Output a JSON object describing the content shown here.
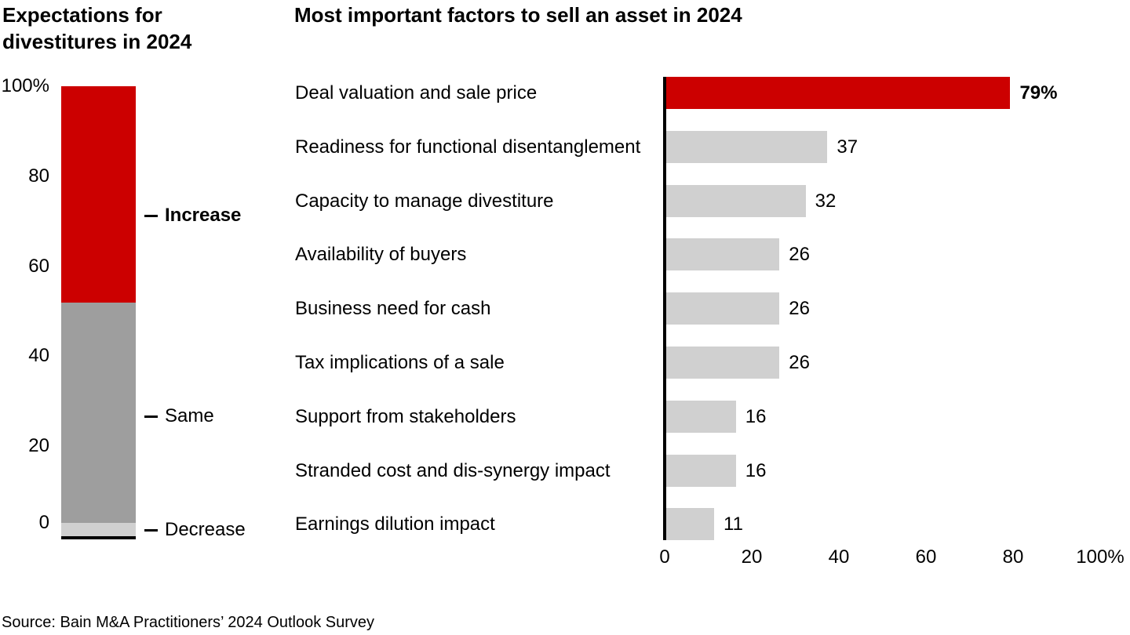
{
  "source": "Source: Bain M&A Practitioners’ 2024 Outlook Survey",
  "colors": {
    "accent_red": "#CC0000",
    "mid_gray": "#9E9E9E",
    "light_gray": "#D0D0D0",
    "axis_black": "#000000"
  },
  "chart_data": [
    {
      "type": "bar",
      "subtype": "100%-stacked-column",
      "title": "Expectations for divestitures in 2024",
      "unit": "%",
      "ylim": [
        0,
        100
      ],
      "grid": false,
      "legend_position": "right-of-bar",
      "series": [
        {
          "name": "Increase",
          "value": 48,
          "color": "#CC0000",
          "emphasis": true
        },
        {
          "name": "Same",
          "value": 49,
          "color": "#9E9E9E",
          "emphasis": false
        },
        {
          "name": "Decrease",
          "value": 3,
          "color": "#D0D0D0",
          "emphasis": false
        }
      ],
      "y_ticks": [
        {
          "label": "100%",
          "value": 100
        },
        {
          "label": "80",
          "value": 80
        },
        {
          "label": "60",
          "value": 60
        },
        {
          "label": "40",
          "value": 40
        },
        {
          "label": "20",
          "value": 20
        },
        {
          "label": "0",
          "value": 0
        }
      ]
    },
    {
      "type": "bar",
      "orientation": "horizontal",
      "title": "Most important factors to sell an asset in 2024",
      "unit": "%",
      "xlim": [
        0,
        100
      ],
      "grid": false,
      "bar_color": "#D0D0D0",
      "highlight_color": "#CC0000",
      "items": [
        {
          "label": "Deal valuation and sale price",
          "value": 79,
          "value_label": "79%",
          "highlight": true
        },
        {
          "label": "Readiness for functional disentanglement",
          "value": 37,
          "value_label": "37",
          "highlight": false
        },
        {
          "label": "Capacity to manage divestiture",
          "value": 32,
          "value_label": "32",
          "highlight": false
        },
        {
          "label": "Availability of buyers",
          "value": 26,
          "value_label": "26",
          "highlight": false
        },
        {
          "label": "Business need for cash",
          "value": 26,
          "value_label": "26",
          "highlight": false
        },
        {
          "label": "Tax implications of a sale",
          "value": 26,
          "value_label": "26",
          "highlight": false
        },
        {
          "label": "Support from stakeholders",
          "value": 16,
          "value_label": "16",
          "highlight": false
        },
        {
          "label": "Stranded cost and dis-synergy impact",
          "value": 16,
          "value_label": "16",
          "highlight": false
        },
        {
          "label": "Earnings dilution impact",
          "value": 11,
          "value_label": "11",
          "highlight": false
        }
      ],
      "x_ticks": [
        {
          "label": "0",
          "value": 0
        },
        {
          "label": "20",
          "value": 20
        },
        {
          "label": "40",
          "value": 40
        },
        {
          "label": "60",
          "value": 60
        },
        {
          "label": "80",
          "value": 80
        },
        {
          "label": "100%",
          "value": 100
        }
      ]
    }
  ]
}
